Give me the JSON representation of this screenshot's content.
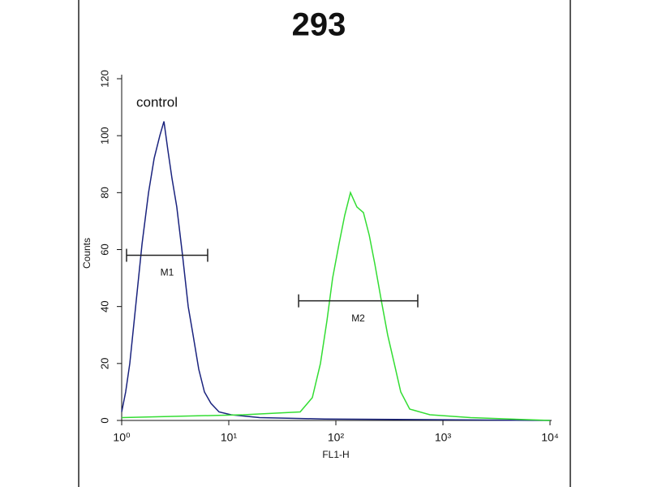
{
  "chart_data": {
    "type": "line",
    "title": "293",
    "x_label": "FL1-H",
    "y_label": "Counts",
    "log_x": true,
    "xlim": [
      1,
      10000
    ],
    "ylim": [
      0,
      120
    ],
    "xticks": [
      {
        "value": 1,
        "label": "10⁰"
      },
      {
        "value": 10,
        "label": "10¹"
      },
      {
        "value": 100,
        "label": "10²"
      },
      {
        "value": 1000,
        "label": "10³"
      },
      {
        "value": 10000,
        "label": "10⁴"
      }
    ],
    "yticks": [
      0,
      20,
      40,
      60,
      80,
      100,
      120
    ],
    "series": [
      {
        "name": "control",
        "color": "#1a237e",
        "x": [
          1,
          1.09,
          1.19,
          1.35,
          1.55,
          1.78,
          2.01,
          2.27,
          2.48,
          2.7,
          2.95,
          3.27,
          3.7,
          4.18,
          4.64,
          5.24,
          5.93,
          6.81,
          8.11,
          10.5,
          19.4,
          78.3,
          10000
        ],
        "values": [
          3,
          10,
          20,
          40,
          62,
          80,
          92,
          100,
          105,
          95,
          85,
          75,
          58,
          40,
          30,
          18,
          10,
          6,
          3,
          2,
          1,
          0.5,
          0
        ]
      },
      {
        "color": "#33dd33",
        "x": [
          1,
          13.7,
          46.4,
          60.3,
          71.8,
          82.5,
          93.2,
          107,
          121,
          137,
          157,
          181,
          205,
          231,
          266,
          305,
          351,
          404,
          489,
          757,
          1811,
          10000
        ],
        "values": [
          1,
          2,
          3,
          8,
          20,
          35,
          50,
          62,
          72,
          80,
          75,
          73,
          65,
          55,
          42,
          30,
          20,
          10,
          4,
          2,
          1,
          0
        ]
      }
    ],
    "markers": [
      {
        "label": "M1",
        "x": [
          1.11,
          6.35
        ],
        "y": 58
      },
      {
        "label": "M2",
        "x": [
          44.9,
          582
        ],
        "y": 42
      }
    ]
  }
}
